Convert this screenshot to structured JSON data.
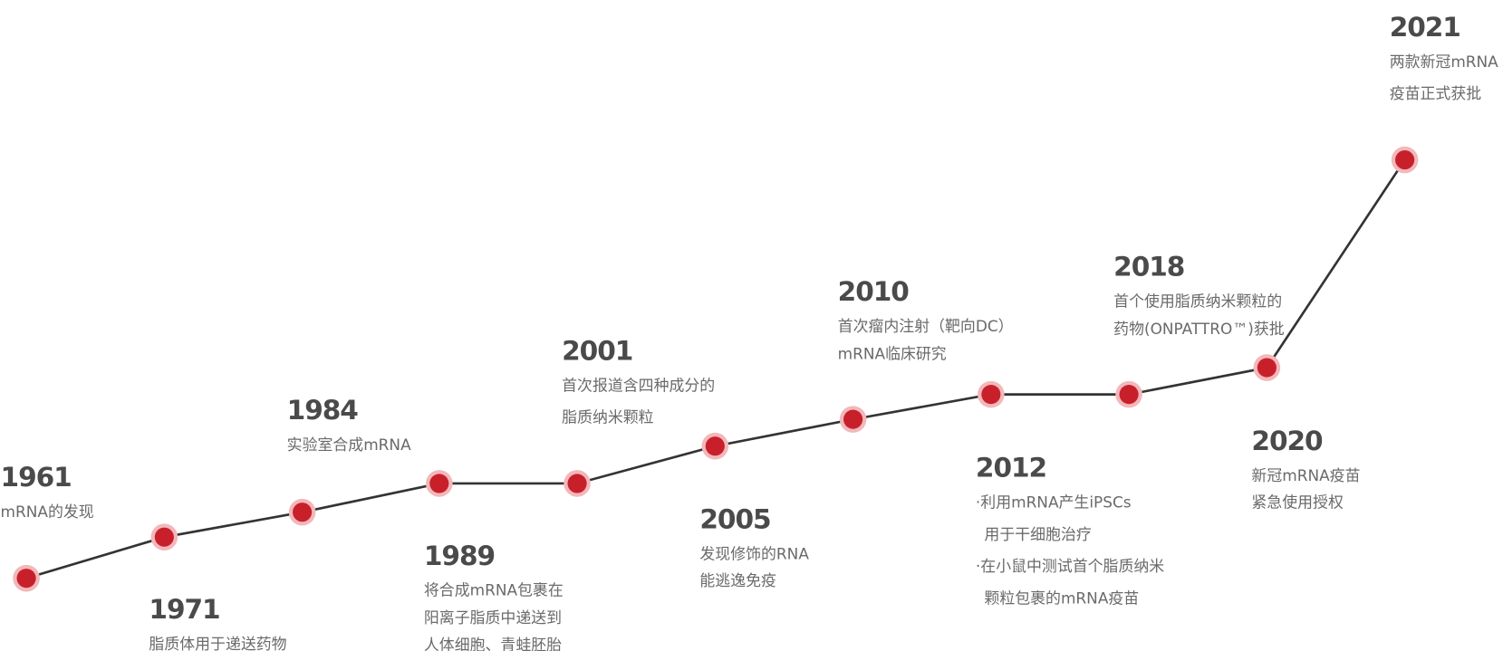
{
  "events": [
    {
      "year": "1961",
      "lines": [
        "mRNA的发现"
      ]
    },
    {
      "year": "1971",
      "lines": [
        "脂质体用于递送药物"
      ]
    },
    {
      "year": "1984",
      "lines": [
        "实验室合成mRNA"
      ]
    },
    {
      "year": "1989",
      "lines": [
        "将合成mRNA包裹在",
        "阳离子脂质中递送到",
        "人体细胞、青蛙胚胎"
      ]
    },
    {
      "year": "2001",
      "lines": [
        "首次报道含四种成分的",
        "脂质纳米颗粒"
      ]
    },
    {
      "year": "2005",
      "lines": [
        "发现修饰的RNA",
        "能逃逸免疫"
      ]
    },
    {
      "year": "2010",
      "lines": [
        "首次瘤内注射（靶向DC）",
        "mRNA临床研究"
      ]
    },
    {
      "year": "2012",
      "lines": [
        "·利用mRNA产生iPSCs",
        "用于干细胞治疗",
        "·在小鼠中测试首个脂质纳米",
        "颗粒包裹的mRNA疫苗"
      ]
    },
    {
      "year": "2018",
      "lines": [
        "首个使用脂质纳米颗粒的",
        "药物(ONPATTRO™)获批"
      ]
    },
    {
      "year": "2020",
      "lines": [
        "新冠mRNA疫苗",
        "紧急使用授权"
      ]
    },
    {
      "year": "2021",
      "lines": [
        "两款新冠mRNA",
        "疫苗正式获批"
      ]
    }
  ]
}
